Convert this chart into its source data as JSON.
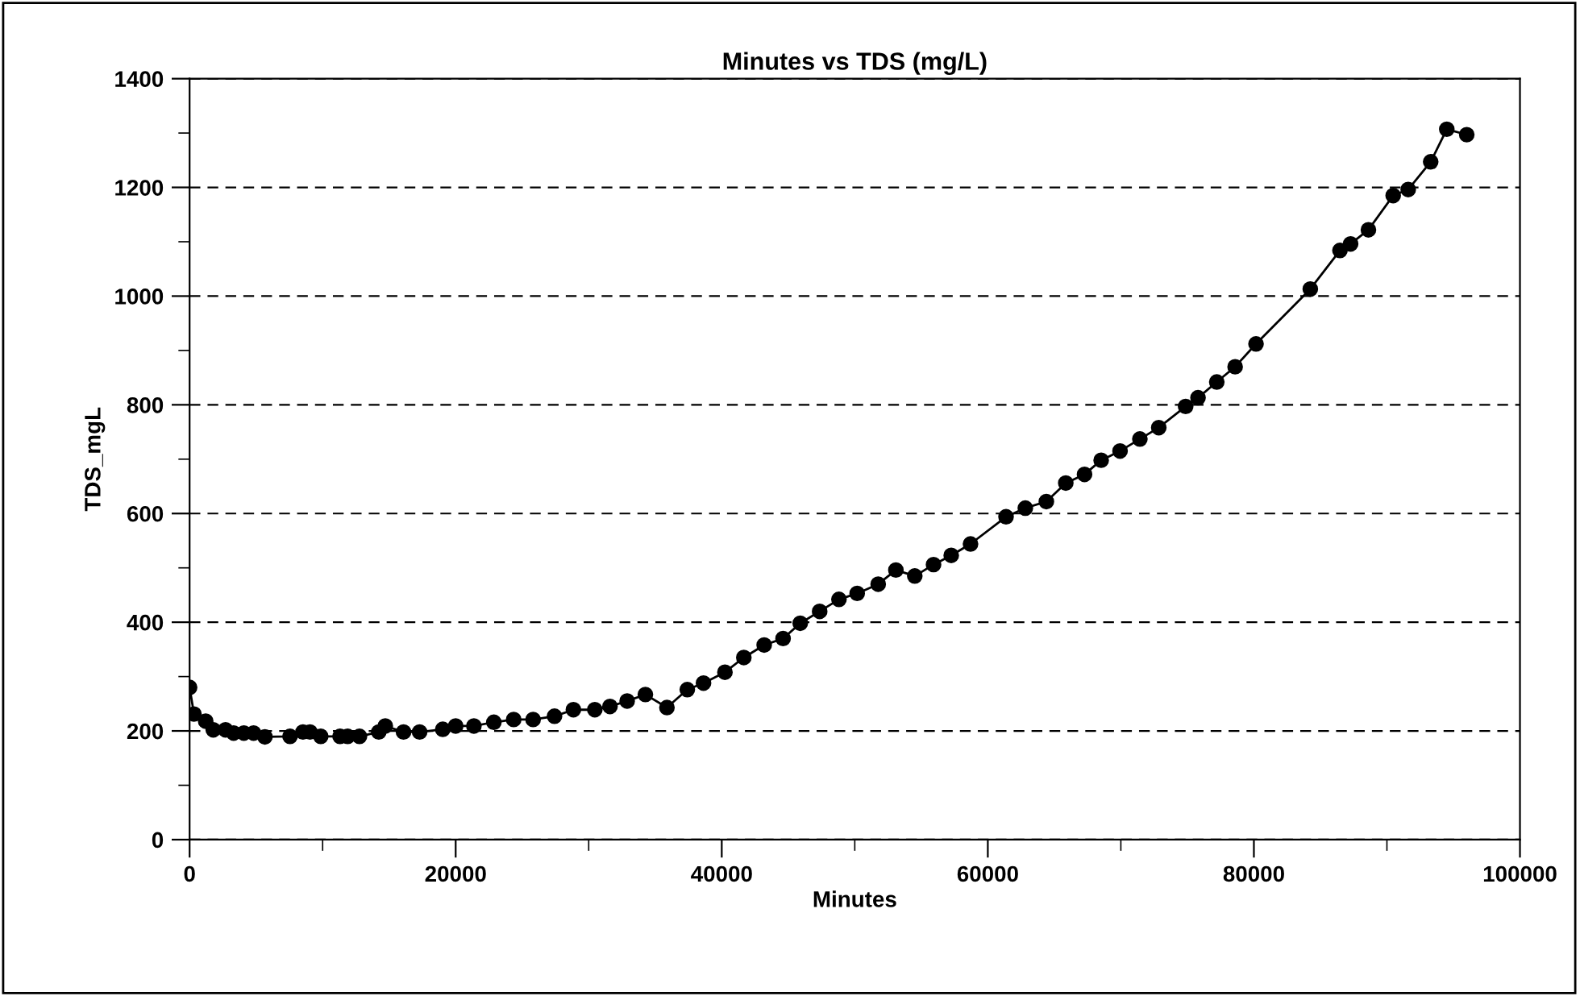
{
  "chart_data": {
    "type": "line",
    "title": "Minutes vs TDS (mg/L)",
    "xlabel": "Minutes",
    "ylabel": "TDS_mgL",
    "x": [
      0,
      330,
      1210,
      1780,
      2700,
      3310,
      4080,
      4810,
      5660,
      7550,
      8520,
      9050,
      9860,
      11310,
      11880,
      12770,
      14220,
      14710,
      16080,
      17290,
      19030,
      20000,
      21370,
      22870,
      24360,
      25820,
      27430,
      28850,
      30460,
      31600,
      32890,
      34260,
      35880,
      37410,
      38630,
      40240,
      41660,
      43190,
      44610,
      45900,
      47360,
      48810,
      50180,
      51760,
      53090,
      54510,
      55920,
      57250,
      58700,
      61370,
      62820,
      64400,
      65860,
      67270,
      68520,
      69940,
      71430,
      72850,
      74870,
      75800,
      77210,
      78590,
      80160,
      84240,
      86470,
      87270,
      88610,
      90470,
      91600,
      93290,
      94500,
      96000
    ],
    "series": [
      {
        "color": "#000000",
        "values": [
          280,
          231,
          218,
          202,
          202,
          196,
          196,
          196,
          189,
          190,
          198,
          198,
          190,
          190,
          190,
          190,
          198,
          209,
          198,
          198,
          203,
          209,
          209,
          216,
          221,
          221,
          227,
          239,
          239,
          245,
          255,
          267,
          243,
          276,
          288,
          308,
          335,
          358,
          370,
          398,
          420,
          442,
          453,
          470,
          496,
          485,
          506,
          523,
          544,
          594,
          610,
          622,
          656,
          672,
          698,
          715,
          737,
          758,
          797,
          813,
          842,
          870,
          912,
          1013,
          1084,
          1096,
          1122,
          1185,
          1196,
          1247,
          1307,
          1297
        ]
      }
    ],
    "xlim": [
      0,
      100000
    ],
    "xticks": [
      0,
      {
        "value": 10000,
        "label": null
      },
      20000,
      {
        "value": 30000,
        "label": null
      },
      40000,
      {
        "value": 50000,
        "label": null
      },
      60000,
      {
        "value": 70000,
        "label": null
      },
      80000,
      {
        "value": 90000,
        "label": null
      },
      100000
    ],
    "ylim": [
      0,
      1400
    ],
    "yticks": [
      0,
      {
        "value": 100,
        "label": null
      },
      200,
      {
        "value": 300,
        "label": null
      },
      400,
      {
        "value": 500,
        "label": null
      },
      600,
      {
        "value": 700,
        "label": null
      },
      800,
      {
        "value": 900,
        "label": null
      },
      1000,
      {
        "value": 1100,
        "label": null
      },
      1200,
      {
        "value": 1300,
        "label": null
      },
      1400
    ],
    "grid": "y",
    "marker": "circle",
    "line_style": "solid",
    "legend": false
  }
}
